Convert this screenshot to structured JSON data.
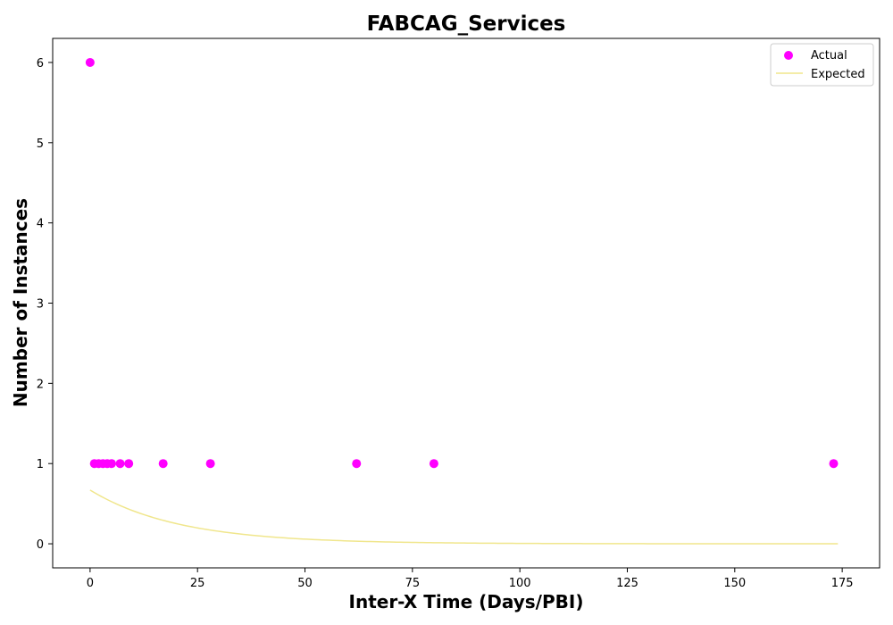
{
  "chart_data": {
    "type": "scatter",
    "title": "FABCAG_Services",
    "xlabel": "Inter-X Time (Days/PBI)",
    "ylabel": "Number of Instances",
    "xlim": [
      -8.7,
      183.7
    ],
    "ylim": [
      -0.3,
      6.3
    ],
    "xticks": [
      0,
      25,
      50,
      75,
      100,
      125,
      150,
      175
    ],
    "yticks": [
      0,
      1,
      2,
      3,
      4,
      5,
      6
    ],
    "grid": false,
    "legend_position": "top-right",
    "series": [
      {
        "name": "Actual",
        "kind": "scatter",
        "color": "#ff00ff",
        "x": [
          0,
          1,
          2,
          3,
          4,
          5,
          7,
          9,
          17,
          28,
          62,
          80,
          173
        ],
        "y": [
          6,
          1,
          1,
          1,
          1,
          1,
          1,
          1,
          1,
          1,
          1,
          1,
          1
        ]
      },
      {
        "name": "Expected",
        "kind": "line",
        "color": "#f0e68c",
        "function": "exponential",
        "amplitude": 0.67,
        "decay_days": 20.5,
        "x_start": 0,
        "x_end": 174
      }
    ]
  }
}
